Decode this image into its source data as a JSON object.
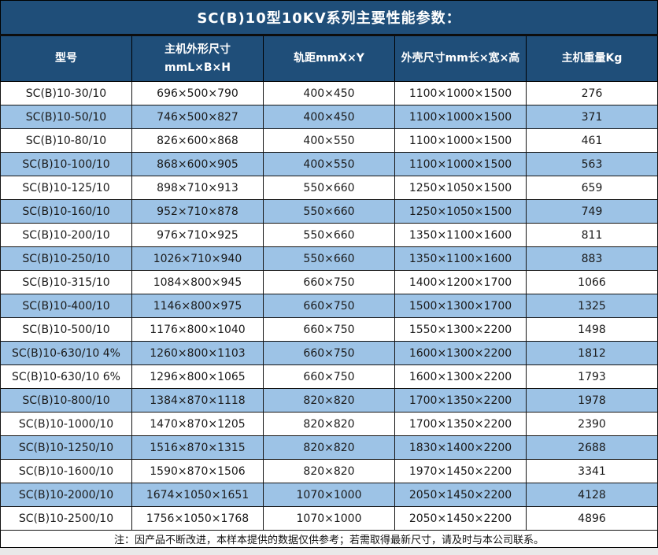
{
  "title": "SC(B)10型10KV系列主要性能参数：",
  "note": "注：因产品不断改进，本样本提供的数据仅供参考；若需取得最新尺寸，请及时与本公司联系。",
  "colors": {
    "header_bg": "#1F4E79",
    "band_bg": "#9DC3E6",
    "text": "#1a1a1a"
  },
  "table": {
    "columns": [
      "型号",
      "主机外形尺寸\nmmL×B×H",
      "轨距mmX×Y",
      "外壳尺寸mm长×宽×高",
      "主机重量Kg"
    ],
    "rows": [
      [
        "SC(B)10-30/10",
        "696×500×790",
        "400×450",
        "1100×1000×1500",
        "276"
      ],
      [
        "SC(B)10-50/10",
        "746×500×827",
        "400×450",
        "1100×1000×1500",
        "371"
      ],
      [
        "SC(B)10-80/10",
        "826×600×868",
        "400×550",
        "1100×1000×1500",
        "461"
      ],
      [
        "SC(B)10-100/10",
        "868×600×905",
        "400×550",
        "1100×1000×1500",
        "563"
      ],
      [
        "SC(B)10-125/10",
        "898×710×913",
        "550×660",
        "1250×1050×1500",
        "659"
      ],
      [
        "SC(B)10-160/10",
        "952×710×878",
        "550×660",
        "1250×1050×1500",
        "749"
      ],
      [
        "SC(B)10-200/10",
        "976×710×925",
        "550×660",
        "1350×1100×1600",
        "811"
      ],
      [
        "SC(B)10-250/10",
        "1026×710×940",
        "550×660",
        "1350×1100×1600",
        "883"
      ],
      [
        "SC(B)10-315/10",
        "1084×800×945",
        "660×750",
        "1400×1200×1700",
        "1066"
      ],
      [
        "SC(B)10-400/10",
        "1146×800×975",
        "660×750",
        "1500×1300×1700",
        "1325"
      ],
      [
        "SC(B)10-500/10",
        "1176×800×1040",
        "660×750",
        "1550×1300×2200",
        "1498"
      ],
      [
        "SC(B)10-630/10 4%",
        "1260×800×1103",
        "660×750",
        "1600×1300×2200",
        "1812"
      ],
      [
        "SC(B)10-630/10 6%",
        "1296×800×1065",
        "660×750",
        "1600×1300×2200",
        "1793"
      ],
      [
        "SC(B)10-800/10",
        "1384×870×1118",
        "820×820",
        "1700×1350×2200",
        "1978"
      ],
      [
        "SC(B)10-1000/10",
        "1470×870×1205",
        "820×820",
        "1700×1350×2200",
        "2390"
      ],
      [
        "SC(B)10-1250/10",
        "1516×870×1315",
        "820×820",
        "1830×1400×2200",
        "2688"
      ],
      [
        "SC(B)10-1600/10",
        "1590×870×1506",
        "820×820",
        "1970×1450×2200",
        "3341"
      ],
      [
        "SC(B)10-2000/10",
        "1674×1050×1651",
        "1070×1000",
        "2050×1450×2200",
        "4128"
      ],
      [
        "SC(B)10-2500/10",
        "1756×1050×1768",
        "1070×1000",
        "2050×1450×2200",
        "4896"
      ]
    ]
  }
}
